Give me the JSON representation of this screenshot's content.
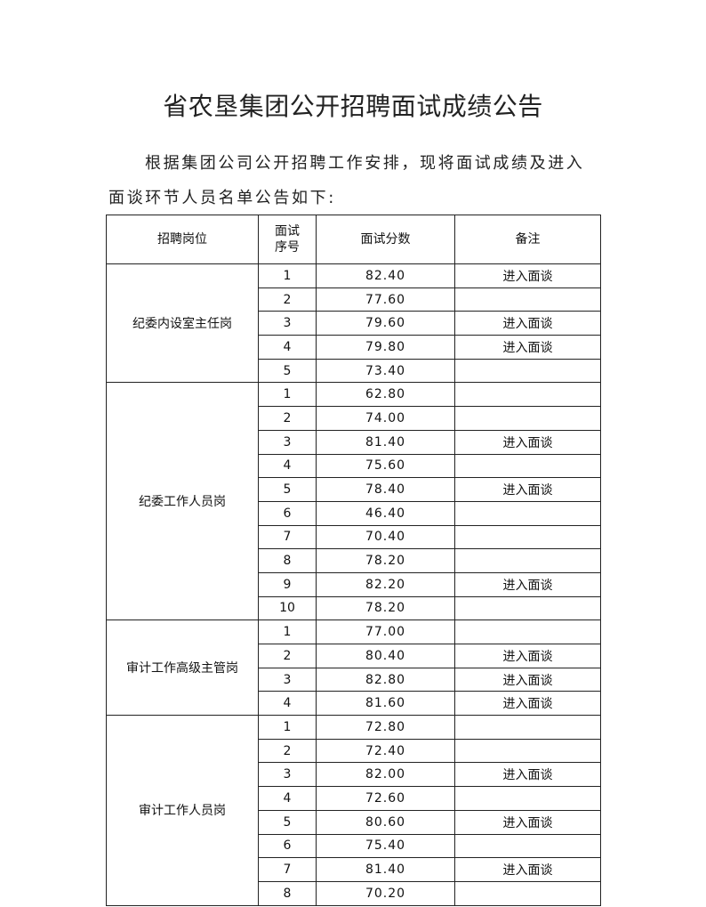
{
  "title": "省农垦集团公开招聘面试成绩公告",
  "intro_line1": "根据集团公司公开招聘工作安排，现将面试成绩及进入",
  "intro_line2": "面谈环节人员名单公告如下:",
  "table": {
    "headers": [
      "招聘岗位",
      "面试\n序号",
      "面试分数",
      "备注"
    ],
    "groups": [
      {
        "position": "纪委内设室主任岗",
        "rows": [
          {
            "no": "1",
            "score": "82.40",
            "note": "进入面谈"
          },
          {
            "no": "2",
            "score": "77.60",
            "note": ""
          },
          {
            "no": "3",
            "score": "79.60",
            "note": "进入面谈"
          },
          {
            "no": "4",
            "score": "79.80",
            "note": "进入面谈"
          },
          {
            "no": "5",
            "score": "73.40",
            "note": ""
          }
        ]
      },
      {
        "position": "纪委工作人员岗",
        "rows": [
          {
            "no": "1",
            "score": "62.80",
            "note": ""
          },
          {
            "no": "2",
            "score": "74.00",
            "note": ""
          },
          {
            "no": "3",
            "score": "81.40",
            "note": "进入面谈"
          },
          {
            "no": "4",
            "score": "75.60",
            "note": ""
          },
          {
            "no": "5",
            "score": "78.40",
            "note": "进入面谈"
          },
          {
            "no": "6",
            "score": "46.40",
            "note": ""
          },
          {
            "no": "7",
            "score": "70.40",
            "note": ""
          },
          {
            "no": "8",
            "score": "78.20",
            "note": ""
          },
          {
            "no": "9",
            "score": "82.20",
            "note": "进入面谈"
          },
          {
            "no": "10",
            "score": "78.20",
            "note": ""
          }
        ]
      },
      {
        "position": "审计工作高级主管岗",
        "rows": [
          {
            "no": "1",
            "score": "77.00",
            "note": ""
          },
          {
            "no": "2",
            "score": "80.40",
            "note": "进入面谈"
          },
          {
            "no": "3",
            "score": "82.80",
            "note": "进入面谈"
          },
          {
            "no": "4",
            "score": "81.60",
            "note": "进入面谈"
          }
        ]
      },
      {
        "position": "审计工作人员岗",
        "rows": [
          {
            "no": "1",
            "score": "72.80",
            "note": ""
          },
          {
            "no": "2",
            "score": "72.40",
            "note": ""
          },
          {
            "no": "3",
            "score": "82.00",
            "note": "进入面谈"
          },
          {
            "no": "4",
            "score": "72.60",
            "note": ""
          },
          {
            "no": "5",
            "score": "80.60",
            "note": "进入面谈"
          },
          {
            "no": "6",
            "score": "75.40",
            "note": ""
          },
          {
            "no": "7",
            "score": "81.40",
            "note": "进入面谈"
          },
          {
            "no": "8",
            "score": "70.20",
            "note": ""
          }
        ]
      }
    ]
  }
}
